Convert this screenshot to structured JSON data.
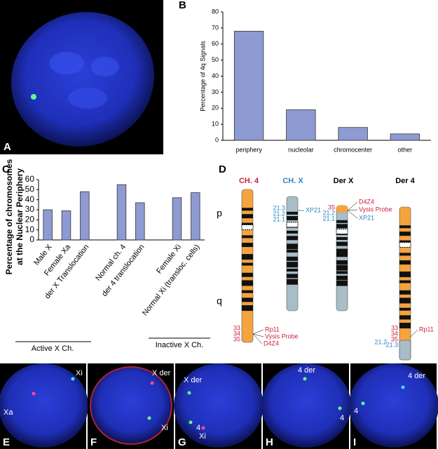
{
  "panel_labels": [
    "A",
    "B",
    "C",
    "D",
    "E",
    "F",
    "G",
    "H",
    "I"
  ],
  "chart_data": [
    {
      "type": "bar",
      "ylabel": "Percentage of 4q Signals",
      "categories": [
        "periphery",
        "nucleolar",
        "chromocenter",
        "other"
      ],
      "values": [
        68,
        19,
        8,
        4
      ],
      "color": "#8e9ad2",
      "ylim": [
        0,
        80
      ],
      "yticks": [
        0,
        10,
        20,
        30,
        40,
        50,
        60,
        70,
        80
      ],
      "grid": false
    },
    {
      "type": "bar",
      "ylabel": [
        "Percentage of chromosomes",
        "at the Nuclear Periphery"
      ],
      "categories": [
        "Male X",
        "Female Xa",
        "der X Translocation",
        null,
        "Normal ch. 4",
        "der 4 translocation",
        null,
        "Female Xi",
        "Normal Xi (transloc. cells)"
      ],
      "values": [
        30,
        29,
        48,
        null,
        55,
        37,
        null,
        42,
        47
      ],
      "color": "#8e9ad2",
      "group_labels": [
        "Active X Ch.",
        "Inactive X Ch."
      ],
      "ylim": [
        0,
        60
      ],
      "yticks": [
        0,
        10,
        20,
        30,
        40,
        50,
        60
      ],
      "grid": false
    }
  ],
  "diagram": {
    "arm_labels": [
      "p",
      "q"
    ],
    "chromosomes": [
      {
        "title": "CH. 4",
        "title_color": "#d0203c",
        "left_labels": [
          {
            "text": "33",
            "color": "#d0203c"
          },
          {
            "text": "34",
            "color": "#d0203c"
          },
          {
            "text": "35",
            "color": "#d0203c"
          }
        ],
        "right_labels": [
          {
            "text": "Rp11",
            "color": "#d0203c"
          },
          {
            "text": "Vysis Probe",
            "color": "#d0203c"
          },
          {
            "text": "D4Z4",
            "color": "#d0203c"
          }
        ]
      },
      {
        "title": "CH. X",
        "title_color": "#2a86c8",
        "left_labels": [
          {
            "text": "21.3",
            "color": "#2a86c8"
          },
          {
            "text": "21.2",
            "color": "#2a86c8"
          },
          {
            "text": "21.1",
            "color": "#2a86c8"
          }
        ],
        "right_labels": [
          {
            "text": "XP21",
            "color": "#2a86c8"
          }
        ]
      },
      {
        "title": "Der X",
        "title_color": "#000000",
        "left_labels": [
          {
            "text": "35",
            "color": "#d0203c"
          },
          {
            "text": "21.2",
            "color": "#2a86c8"
          },
          {
            "text": "21.1",
            "color": "#2a86c8"
          }
        ],
        "right_labels": [
          {
            "text": "D4Z4",
            "color": "#d0203c"
          },
          {
            "text": "Vysis Probe",
            "color": "#d0203c"
          },
          {
            "text": "XP21",
            "color": "#2a86c8"
          }
        ]
      },
      {
        "title": "Der 4",
        "title_color": "#000000",
        "left_labels": [
          {
            "text": "33",
            "color": "#d0203c"
          },
          {
            "text": "34",
            "color": "#d0203c"
          },
          {
            "text": "35",
            "color": "#d0203c"
          },
          {
            "text": "21.2",
            "color": "#2a86c8"
          },
          {
            "text": "21.3",
            "color": "#2a86c8"
          }
        ],
        "right_labels": [
          {
            "text": "Rp11",
            "color": "#d0203c"
          }
        ]
      }
    ]
  },
  "image_labels": [
    [
      "Xa",
      "Xi"
    ],
    [
      "X der",
      "Xi"
    ],
    [
      "X der",
      "4",
      "Xi"
    ],
    [
      "4 der",
      "4"
    ],
    [
      "4 der",
      "4"
    ]
  ]
}
